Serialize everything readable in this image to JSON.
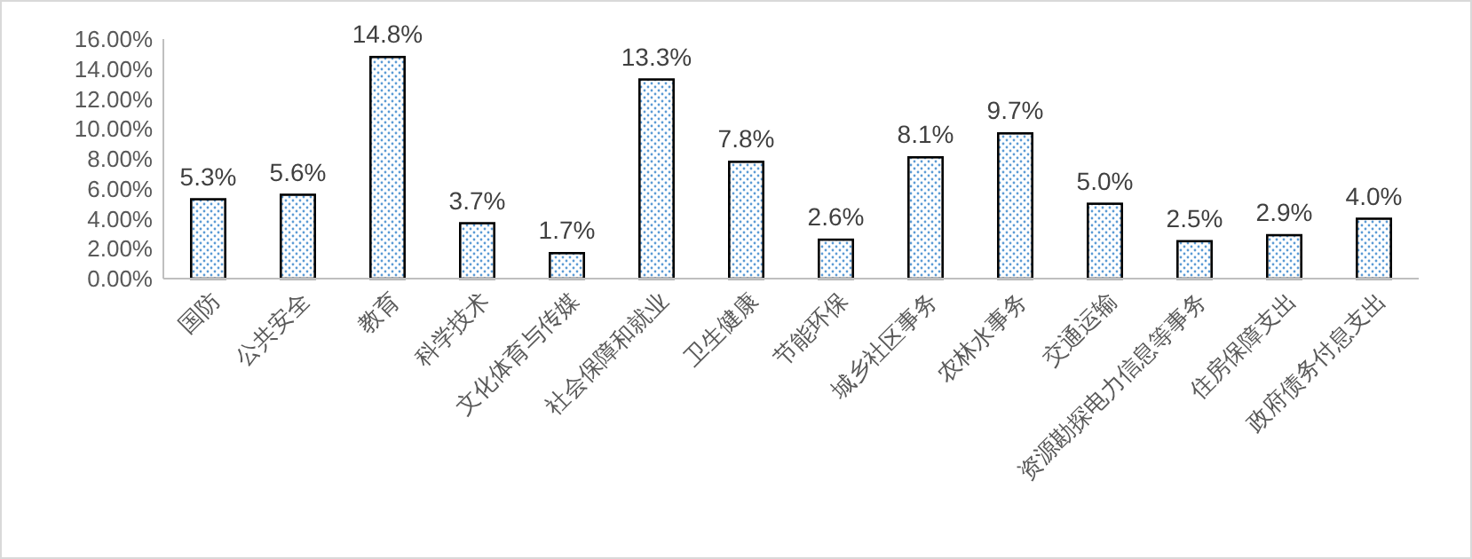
{
  "chart_data": {
    "type": "bar",
    "categories": [
      "国防",
      "公共安全",
      "教育",
      "科学技术",
      "文化体育与传媒",
      "社会保障和就业",
      "卫生健康",
      "节能环保",
      "城乡社区事务",
      "农林水事务",
      "交通运输",
      "资源勘探电力信息等事务",
      "住房保障支出",
      "政府债务付息支出"
    ],
    "values": [
      5.3,
      5.6,
      14.8,
      3.7,
      1.7,
      13.3,
      7.8,
      2.6,
      8.1,
      9.7,
      5.0,
      2.5,
      2.9,
      4.0
    ],
    "value_labels": [
      "5.3%",
      "5.6%",
      "14.8%",
      "3.7%",
      "1.7%",
      "13.3%",
      "7.8%",
      "2.6%",
      "8.1%",
      "9.7%",
      "5.0%",
      "2.5%",
      "2.9%",
      "4.0%"
    ],
    "color": "#000000",
    "ylim": [
      0,
      16
    ],
    "yticks": [
      {
        "value": 0,
        "label": "0.00%"
      },
      {
        "value": 2,
        "label": "2.00%"
      },
      {
        "value": 4,
        "label": "4.00%"
      },
      {
        "value": 6,
        "label": "6.00%"
      },
      {
        "value": 8,
        "label": "8.00%"
      },
      {
        "value": 10,
        "label": "10.00%"
      },
      {
        "value": 12,
        "label": "12.00%"
      },
      {
        "value": 14,
        "label": "14.00%"
      },
      {
        "value": 16,
        "label": "16.00%"
      }
    ],
    "grid": false
  }
}
